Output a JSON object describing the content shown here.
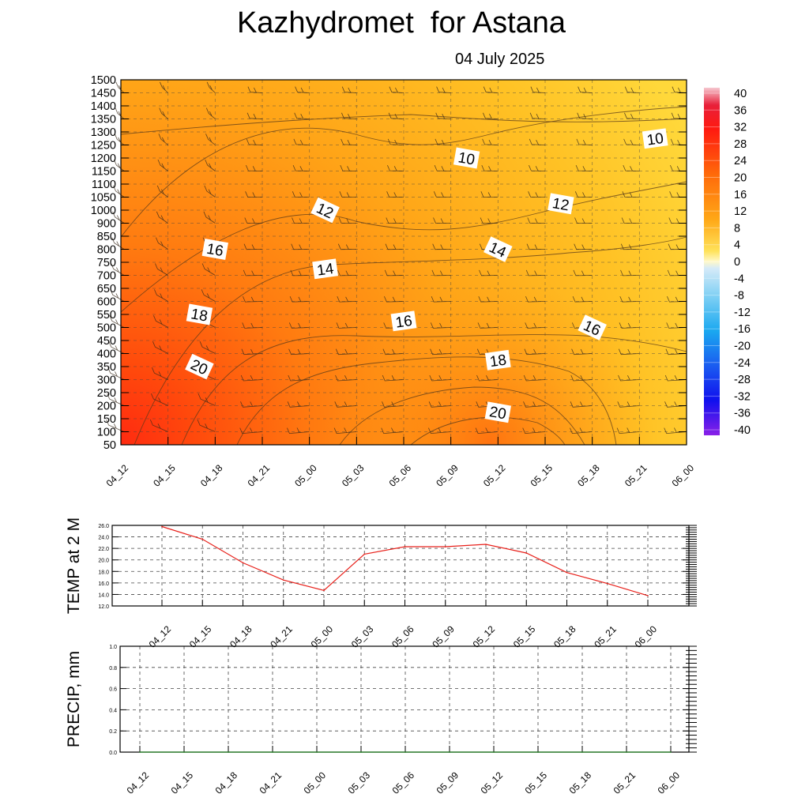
{
  "header": {
    "title": "Kazhydromet  for Astana",
    "date": "04 July 2025"
  },
  "chart_data": [
    {
      "type": "heatmap",
      "title": "Kazhydromet  for Astana",
      "subtitle": "04 July 2025",
      "x_ticks": [
        "04_12",
        "04_15",
        "04_18",
        "04_21",
        "05_00",
        "05_03",
        "05_06",
        "05_09",
        "05_12",
        "05_15",
        "05_18",
        "05_21",
        "06_00"
      ],
      "y_ticks": [
        50,
        100,
        150,
        200,
        250,
        300,
        350,
        400,
        450,
        500,
        550,
        600,
        650,
        700,
        750,
        800,
        850,
        900,
        1000,
        1050,
        1100,
        1150,
        1200,
        1250,
        1300,
        1350,
        1400,
        1450,
        1500
      ],
      "colorbar": {
        "labels": [
          40,
          36,
          32,
          28,
          24,
          20,
          16,
          12,
          8,
          4,
          0,
          -4,
          -8,
          -12,
          -16,
          -20,
          -24,
          -28,
          -32,
          -36,
          -40
        ],
        "range": [
          -40,
          40
        ]
      },
      "contour_labels": [
        {
          "value": "10",
          "x": "05_10",
          "y": 1200
        },
        {
          "value": "10",
          "x": "05_22",
          "y": 1275
        },
        {
          "value": "12",
          "x": "05_01",
          "y": 1000
        },
        {
          "value": "12",
          "x": "05_16",
          "y": 1025
        },
        {
          "value": "14",
          "x": "05_01",
          "y": 725
        },
        {
          "value": "14",
          "x": "05_12",
          "y": 800
        },
        {
          "value": "16",
          "x": "04_18",
          "y": 800
        },
        {
          "value": "16",
          "x": "05_06",
          "y": 525
        },
        {
          "value": "16",
          "x": "05_18",
          "y": 500
        },
        {
          "value": "18",
          "x": "04_17",
          "y": 550
        },
        {
          "value": "18",
          "x": "05_12",
          "y": 375
        },
        {
          "value": "20",
          "x": "04_17",
          "y": 350
        },
        {
          "value": "20",
          "x": "05_12",
          "y": 175
        }
      ],
      "grid": true,
      "wind_barbs": true
    },
    {
      "type": "line",
      "ylabel": "TEMP at 2 M",
      "ylim": [
        12.0,
        26.0
      ],
      "y_ticks": [
        "12.0",
        "14.0",
        "16.0",
        "18.0",
        "20.0",
        "22.0",
        "24.0",
        "26.0"
      ],
      "categories": [
        "04_12",
        "04_15",
        "04_18",
        "04_21",
        "05_00",
        "05_03",
        "05_06",
        "05_09",
        "05_12",
        "05_15",
        "05_18",
        "05_21",
        "06_00"
      ],
      "series": [
        {
          "color": "#e8201a",
          "values": [
            25.8,
            23.6,
            19.5,
            16.5,
            14.7,
            21.0,
            22.3,
            22.3,
            22.7,
            21.2,
            17.8,
            15.9,
            13.8
          ]
        }
      ],
      "grid": true
    },
    {
      "type": "line",
      "ylabel": "PRECIP, mm",
      "ylim": [
        0.0,
        1.0
      ],
      "y_ticks": [
        "0.0",
        "0.2",
        "0.4",
        "0.6",
        "0.8",
        "1.0"
      ],
      "categories": [
        "04_12",
        "04_15",
        "04_18",
        "04_21",
        "05_00",
        "05_03",
        "05_06",
        "05_09",
        "05_12",
        "05_15",
        "05_18",
        "05_21",
        "06_00"
      ],
      "series": [
        {
          "color": "#1a7a1a",
          "values": [
            0,
            0,
            0,
            0,
            0,
            0,
            0,
            0,
            0,
            0,
            0,
            0,
            0
          ]
        }
      ],
      "grid": true
    }
  ]
}
